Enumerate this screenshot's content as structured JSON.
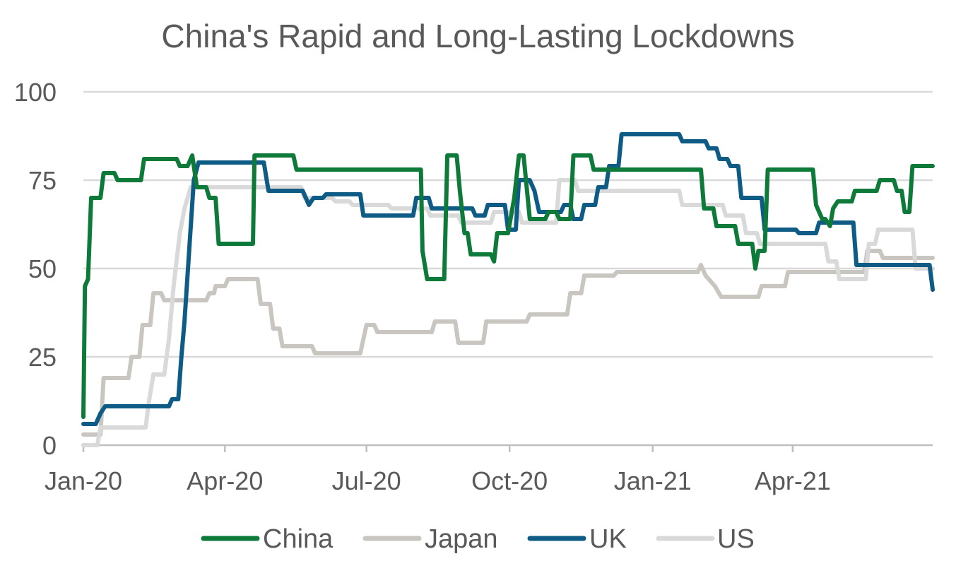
{
  "chart_data": {
    "type": "line",
    "title": "China's Rapid and Long-Lasting Lockdowns",
    "xlabel": "",
    "ylabel": "",
    "ylim": [
      0,
      100
    ],
    "yticks": [
      0,
      25,
      50,
      75,
      100
    ],
    "xlim": [
      "2020-01-01",
      "2021-06-30"
    ],
    "xticks": [
      {
        "date": "2020-01-01",
        "label": "Jan-20"
      },
      {
        "date": "2020-04-01",
        "label": "Apr-20"
      },
      {
        "date": "2020-07-01",
        "label": "Jul-20"
      },
      {
        "date": "2020-10-01",
        "label": "Oct-20"
      },
      {
        "date": "2021-01-01",
        "label": "Jan-21"
      },
      {
        "date": "2021-04-01",
        "label": "Apr-21"
      }
    ],
    "grid": "horizontal",
    "legend": "bottom",
    "series": [
      {
        "name": "Japan",
        "color": "#c9c5c0",
        "points": [
          [
            "2020-01-01",
            3
          ],
          [
            "2020-01-12",
            3
          ],
          [
            "2020-01-14",
            19
          ],
          [
            "2020-01-30",
            19
          ],
          [
            "2020-02-01",
            25
          ],
          [
            "2020-02-06",
            25
          ],
          [
            "2020-02-08",
            34
          ],
          [
            "2020-02-13",
            34
          ],
          [
            "2020-02-15",
            43
          ],
          [
            "2020-02-20",
            43
          ],
          [
            "2020-02-22",
            41
          ],
          [
            "2020-03-20",
            41
          ],
          [
            "2020-03-22",
            43
          ],
          [
            "2020-03-25",
            43
          ],
          [
            "2020-03-26",
            45
          ],
          [
            "2020-04-01",
            45
          ],
          [
            "2020-04-03",
            47
          ],
          [
            "2020-04-22",
            47
          ],
          [
            "2020-04-24",
            40
          ],
          [
            "2020-04-30",
            40
          ],
          [
            "2020-05-02",
            33
          ],
          [
            "2020-05-06",
            33
          ],
          [
            "2020-05-08",
            28
          ],
          [
            "2020-05-27",
            28
          ],
          [
            "2020-05-29",
            26
          ],
          [
            "2020-06-27",
            26
          ],
          [
            "2020-06-29",
            30
          ],
          [
            "2020-07-01",
            34
          ],
          [
            "2020-07-06",
            34
          ],
          [
            "2020-07-08",
            32
          ],
          [
            "2020-08-12",
            32
          ],
          [
            "2020-08-14",
            35
          ],
          [
            "2020-08-27",
            35
          ],
          [
            "2020-08-29",
            29
          ],
          [
            "2020-09-14",
            29
          ],
          [
            "2020-09-16",
            35
          ],
          [
            "2020-10-12",
            35
          ],
          [
            "2020-10-14",
            37
          ],
          [
            "2020-11-07",
            37
          ],
          [
            "2020-11-09",
            43
          ],
          [
            "2020-11-16",
            43
          ],
          [
            "2020-11-18",
            48
          ],
          [
            "2020-12-07",
            48
          ],
          [
            "2020-12-09",
            49
          ],
          [
            "2021-01-30",
            49
          ],
          [
            "2021-02-01",
            51
          ],
          [
            "2021-02-04",
            48
          ],
          [
            "2021-02-10",
            45
          ],
          [
            "2021-02-14",
            42
          ],
          [
            "2021-03-10",
            42
          ],
          [
            "2021-03-12",
            45
          ],
          [
            "2021-03-27",
            45
          ],
          [
            "2021-03-29",
            49
          ],
          [
            "2021-05-17",
            49
          ],
          [
            "2021-05-19",
            55
          ],
          [
            "2021-05-27",
            55
          ],
          [
            "2021-05-29",
            53
          ],
          [
            "2021-06-30",
            53
          ]
        ]
      },
      {
        "name": "US",
        "color": "#d9d9d9",
        "points": [
          [
            "2020-01-01",
            0
          ],
          [
            "2020-01-10",
            0
          ],
          [
            "2020-01-12",
            5
          ],
          [
            "2020-02-10",
            5
          ],
          [
            "2020-02-12",
            12
          ],
          [
            "2020-02-15",
            20
          ],
          [
            "2020-02-22",
            20
          ],
          [
            "2020-02-25",
            30
          ],
          [
            "2020-02-28",
            45
          ],
          [
            "2020-03-03",
            60
          ],
          [
            "2020-03-06",
            67
          ],
          [
            "2020-03-10",
            73
          ],
          [
            "2020-05-20",
            73
          ],
          [
            "2020-05-22",
            70
          ],
          [
            "2020-06-09",
            70
          ],
          [
            "2020-06-11",
            69
          ],
          [
            "2020-06-20",
            69
          ],
          [
            "2020-06-22",
            68
          ],
          [
            "2020-07-15",
            68
          ],
          [
            "2020-07-17",
            67
          ],
          [
            "2020-08-09",
            67
          ],
          [
            "2020-08-11",
            65
          ],
          [
            "2020-08-29",
            65
          ],
          [
            "2020-08-31",
            63
          ],
          [
            "2020-09-19",
            63
          ],
          [
            "2020-09-21",
            66
          ],
          [
            "2020-10-07",
            66
          ],
          [
            "2020-10-09",
            63
          ],
          [
            "2020-10-31",
            63
          ],
          [
            "2020-11-02",
            75
          ],
          [
            "2020-11-12",
            75
          ],
          [
            "2020-11-14",
            72
          ],
          [
            "2021-01-18",
            72
          ],
          [
            "2021-01-20",
            68
          ],
          [
            "2021-02-15",
            68
          ],
          [
            "2021-02-17",
            65
          ],
          [
            "2021-02-28",
            65
          ],
          [
            "2021-03-02",
            60
          ],
          [
            "2021-03-09",
            60
          ],
          [
            "2021-03-11",
            57
          ],
          [
            "2021-04-22",
            57
          ],
          [
            "2021-04-24",
            52
          ],
          [
            "2021-04-29",
            52
          ],
          [
            "2021-05-01",
            47
          ],
          [
            "2021-05-18",
            47
          ],
          [
            "2021-05-20",
            57
          ],
          [
            "2021-05-24",
            57
          ],
          [
            "2021-05-26",
            61
          ],
          [
            "2021-06-17",
            61
          ],
          [
            "2021-06-19",
            50
          ],
          [
            "2021-06-30",
            50
          ]
        ]
      },
      {
        "name": "UK",
        "color": "#0e5b85",
        "points": [
          [
            "2020-01-01",
            6
          ],
          [
            "2020-01-09",
            6
          ],
          [
            "2020-01-12",
            9
          ],
          [
            "2020-01-15",
            11
          ],
          [
            "2020-02-25",
            11
          ],
          [
            "2020-02-27",
            13
          ],
          [
            "2020-03-02",
            13
          ],
          [
            "2020-03-04",
            25
          ],
          [
            "2020-03-06",
            35
          ],
          [
            "2020-03-09",
            55
          ],
          [
            "2020-03-12",
            75
          ],
          [
            "2020-03-15",
            80
          ],
          [
            "2020-04-26",
            80
          ],
          [
            "2020-04-29",
            72
          ],
          [
            "2020-05-21",
            72
          ],
          [
            "2020-05-23",
            70
          ],
          [
            "2020-05-25",
            68
          ],
          [
            "2020-05-28",
            70
          ],
          [
            "2020-06-03",
            70
          ],
          [
            "2020-06-05",
            71
          ],
          [
            "2020-06-27",
            71
          ],
          [
            "2020-06-29",
            65
          ],
          [
            "2020-07-31",
            65
          ],
          [
            "2020-08-02",
            70
          ],
          [
            "2020-08-10",
            70
          ],
          [
            "2020-08-12",
            67
          ],
          [
            "2020-09-07",
            67
          ],
          [
            "2020-09-09",
            65
          ],
          [
            "2020-09-15",
            65
          ],
          [
            "2020-09-17",
            68
          ],
          [
            "2020-09-28",
            68
          ],
          [
            "2020-09-30",
            61
          ],
          [
            "2020-10-05",
            61
          ],
          [
            "2020-10-07",
            75
          ],
          [
            "2020-10-14",
            75
          ],
          [
            "2020-10-17",
            72
          ],
          [
            "2020-10-20",
            66
          ],
          [
            "2020-11-03",
            66
          ],
          [
            "2020-11-05",
            68
          ],
          [
            "2020-11-09",
            68
          ],
          [
            "2020-11-11",
            64
          ],
          [
            "2020-11-16",
            64
          ],
          [
            "2020-11-18",
            68
          ],
          [
            "2020-11-25",
            68
          ],
          [
            "2020-11-27",
            73
          ],
          [
            "2020-12-02",
            73
          ],
          [
            "2020-12-04",
            79
          ],
          [
            "2020-12-10",
            79
          ],
          [
            "2020-12-12",
            88
          ],
          [
            "2021-01-18",
            88
          ],
          [
            "2021-01-20",
            86
          ],
          [
            "2021-02-04",
            86
          ],
          [
            "2021-02-06",
            84
          ],
          [
            "2021-02-11",
            84
          ],
          [
            "2021-02-13",
            81
          ],
          [
            "2021-02-18",
            81
          ],
          [
            "2021-02-20",
            79
          ],
          [
            "2021-02-25",
            79
          ],
          [
            "2021-02-27",
            70
          ],
          [
            "2021-03-12",
            70
          ],
          [
            "2021-03-14",
            61
          ],
          [
            "2021-04-03",
            61
          ],
          [
            "2021-04-05",
            60
          ],
          [
            "2021-04-16",
            60
          ],
          [
            "2021-04-18",
            63
          ],
          [
            "2021-05-10",
            63
          ],
          [
            "2021-05-12",
            51
          ],
          [
            "2021-06-28",
            51
          ],
          [
            "2021-06-30",
            44
          ]
        ]
      },
      {
        "name": "China",
        "color": "#0d7a3a",
        "points": [
          [
            "2020-01-01",
            8
          ],
          [
            "2020-01-02",
            45
          ],
          [
            "2020-01-04",
            47
          ],
          [
            "2020-01-06",
            70
          ],
          [
            "2020-01-09",
            70
          ],
          [
            "2020-01-12",
            70
          ],
          [
            "2020-01-14",
            77
          ],
          [
            "2020-01-21",
            77
          ],
          [
            "2020-01-23",
            75
          ],
          [
            "2020-02-07",
            75
          ],
          [
            "2020-02-09",
            81
          ],
          [
            "2020-03-01",
            81
          ],
          [
            "2020-03-03",
            79
          ],
          [
            "2020-03-08",
            79
          ],
          [
            "2020-03-11",
            82
          ],
          [
            "2020-03-14",
            73
          ],
          [
            "2020-03-20",
            73
          ],
          [
            "2020-03-22",
            70
          ],
          [
            "2020-03-26",
            70
          ],
          [
            "2020-03-28",
            57
          ],
          [
            "2020-04-19",
            57
          ],
          [
            "2020-04-20",
            82
          ],
          [
            "2020-05-15",
            82
          ],
          [
            "2020-05-17",
            78
          ],
          [
            "2020-08-05",
            78
          ],
          [
            "2020-08-06",
            55
          ],
          [
            "2020-08-09",
            47
          ],
          [
            "2020-08-20",
            47
          ],
          [
            "2020-08-22",
            82
          ],
          [
            "2020-08-28",
            82
          ],
          [
            "2020-08-30",
            72
          ],
          [
            "2020-09-02",
            60
          ],
          [
            "2020-09-04",
            60
          ],
          [
            "2020-09-06",
            54
          ],
          [
            "2020-09-19",
            54
          ],
          [
            "2020-09-21",
            52
          ],
          [
            "2020-09-23",
            60
          ],
          [
            "2020-09-30",
            60
          ],
          [
            "2020-10-04",
            70
          ],
          [
            "2020-10-07",
            82
          ],
          [
            "2020-10-10",
            82
          ],
          [
            "2020-10-14",
            64
          ],
          [
            "2020-10-24",
            64
          ],
          [
            "2020-10-26",
            66
          ],
          [
            "2020-10-31",
            66
          ],
          [
            "2020-11-02",
            64
          ],
          [
            "2020-11-09",
            64
          ],
          [
            "2020-11-11",
            82
          ],
          [
            "2020-11-22",
            82
          ],
          [
            "2020-11-24",
            78
          ],
          [
            "2021-02-01",
            78
          ],
          [
            "2021-02-03",
            67
          ],
          [
            "2021-02-09",
            67
          ],
          [
            "2021-02-11",
            62
          ],
          [
            "2021-02-23",
            62
          ],
          [
            "2021-02-25",
            57
          ],
          [
            "2021-03-06",
            57
          ],
          [
            "2021-03-08",
            50
          ],
          [
            "2021-03-10",
            55
          ],
          [
            "2021-03-14",
            55
          ],
          [
            "2021-03-16",
            78
          ],
          [
            "2021-04-14",
            78
          ],
          [
            "2021-04-16",
            68
          ],
          [
            "2021-04-20",
            64
          ],
          [
            "2021-04-22",
            64
          ],
          [
            "2021-04-25",
            62
          ],
          [
            "2021-04-27",
            67
          ],
          [
            "2021-04-30",
            69
          ],
          [
            "2021-05-09",
            69
          ],
          [
            "2021-05-11",
            72
          ],
          [
            "2021-05-25",
            72
          ],
          [
            "2021-05-27",
            75
          ],
          [
            "2021-06-05",
            75
          ],
          [
            "2021-06-07",
            72
          ],
          [
            "2021-06-10",
            72
          ],
          [
            "2021-06-12",
            66
          ],
          [
            "2021-06-15",
            66
          ],
          [
            "2021-06-17",
            79
          ],
          [
            "2021-06-30",
            79
          ]
        ]
      }
    ],
    "legend_order": [
      "China",
      "Japan",
      "UK",
      "US"
    ]
  }
}
